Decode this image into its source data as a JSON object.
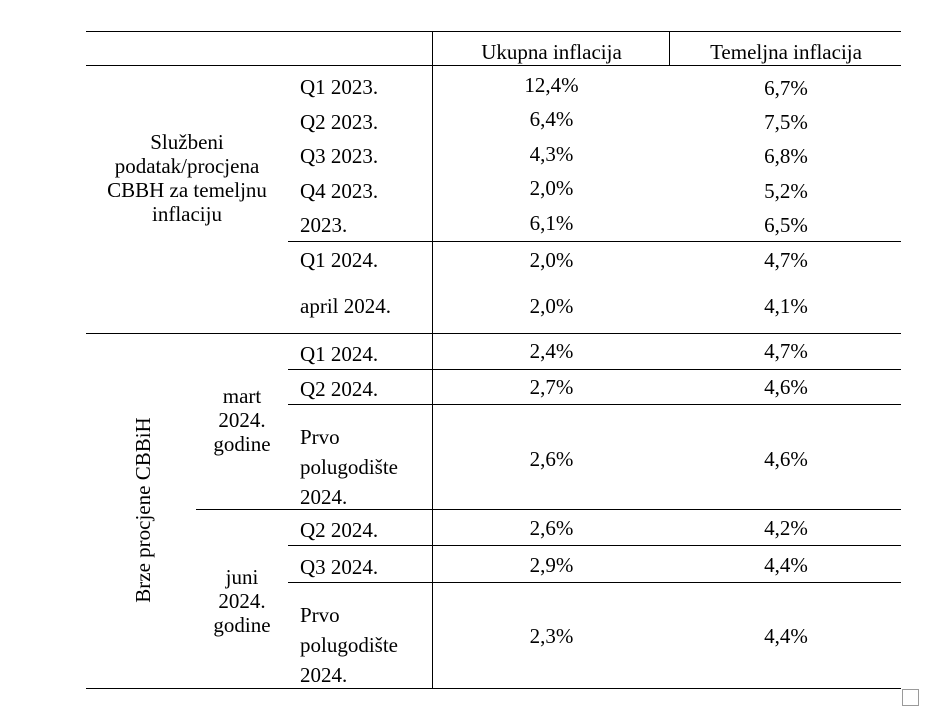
{
  "table": {
    "headers": [
      "Ukupna inflacija",
      "Temeljna inflacija"
    ],
    "groups": {
      "official": "Službeni podatak/procjena CBBH za temeljnu inflaciju",
      "fast": "Brze procjene CBBiH",
      "mart": "mart 2024. godine",
      "juni": "juni 2024. godine"
    },
    "rows": [
      {
        "label": "Q1 2023.",
        "total": "12,4%",
        "core": "6,7%"
      },
      {
        "label": "Q2 2023.",
        "total": "6,4%",
        "core": "7,5%"
      },
      {
        "label": "Q3 2023.",
        "total": "4,3%",
        "core": "6,8%"
      },
      {
        "label": "Q4 2023.",
        "total": "2,0%",
        "core": "5,2%"
      },
      {
        "label": "2023.",
        "total": "6,1%",
        "core": "6,5%"
      },
      {
        "label": "Q1 2024.",
        "total": "2,0%",
        "core": "4,7%"
      },
      {
        "label": "april 2024.",
        "total": "2,0%",
        "core": "4,1%"
      },
      {
        "label": "Q1 2024.",
        "total": "2,4%",
        "core": "4,7%"
      },
      {
        "label": "Q2 2024.",
        "total": "2,7%",
        "core": "4,6%"
      },
      {
        "label": "Prvo polugodište 2024.",
        "total": "2,6%",
        "core": "4,6%"
      },
      {
        "label": "Q2 2024.",
        "total": "2,6%",
        "core": "4,2%"
      },
      {
        "label": "Q3 2024.",
        "total": "2,9%",
        "core": "4,4%"
      },
      {
        "label": "Prvo polugodište 2024.",
        "total": "2,3%",
        "core": "4,4%"
      }
    ]
  }
}
